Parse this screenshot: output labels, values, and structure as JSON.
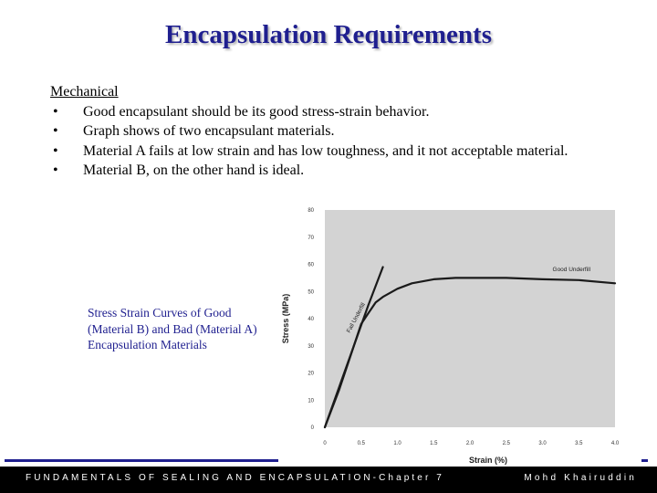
{
  "slide": {
    "title": "Encapsulation Requirements",
    "section_heading": "Mechanical",
    "bullets": [
      "Good encapsulant should be its good stress-strain behavior.",
      "Graph shows of two encapsulant materials.",
      "Material A fails at low strain and has low toughness, and it not acceptable material.",
      "Material B, on the other hand is ideal."
    ],
    "bullet_glyph": "•",
    "caption": "Stress Strain Curves of Good (Material B) and Bad (Material A) Encapsulation Materials",
    "footer_left": "FUNDAMENTALS OF SEALING AND ENCAPSULATION-Chapter 7",
    "footer_right": "Mohd Khairuddin"
  },
  "colors": {
    "title": "#1f1f8f",
    "caption": "#1f1f8f",
    "plot_background": "#d3d3d3",
    "footer_background": "#000000",
    "footer_text": "#ffffff",
    "curve": "#1a1a1a"
  },
  "chart_data": {
    "type": "line",
    "title": "",
    "xlabel": "Strain (%)",
    "ylabel": "Stress (MPa)",
    "xlim": [
      0,
      4.0
    ],
    "ylim": [
      0,
      80
    ],
    "x_ticks": [
      "0",
      "0.5",
      "1.0",
      "1.5",
      "2.0",
      "2.5",
      "3.0",
      "3.5",
      "4.0"
    ],
    "y_ticks": [
      "0",
      "10",
      "20",
      "30",
      "40",
      "50",
      "60",
      "70",
      "80"
    ],
    "grid": false,
    "series": [
      {
        "name": "Good Underfill",
        "x": [
          0,
          0.2,
          0.4,
          0.5,
          0.6,
          0.7,
          0.8,
          1.0,
          1.2,
          1.5,
          1.8,
          2.0,
          2.5,
          3.0,
          3.5,
          4.0
        ],
        "y": [
          0,
          14,
          30,
          38,
          42,
          46,
          48,
          51,
          53,
          54.5,
          55,
          55,
          55,
          54.5,
          54.2,
          53
        ]
      },
      {
        "name": "Fail Underfill",
        "x": [
          0,
          0.2,
          0.4,
          0.6,
          0.8
        ],
        "y": [
          0,
          15,
          30,
          45,
          59
        ]
      }
    ]
  }
}
